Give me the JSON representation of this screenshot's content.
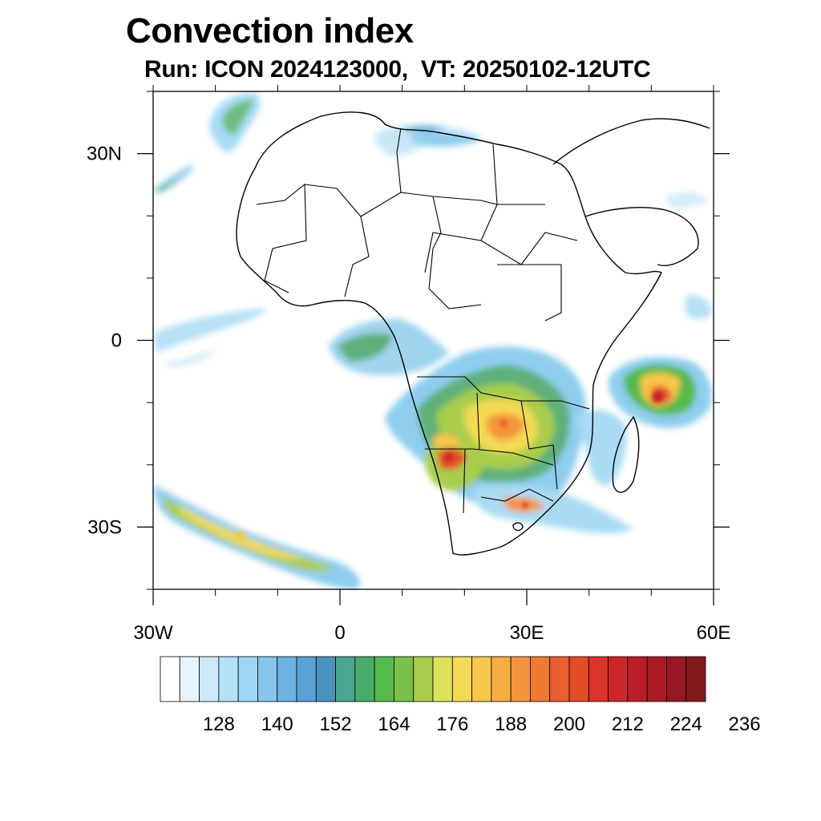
{
  "title": "Convection index",
  "subtitle": "Run: ICON 2024123000,  VT: 20250102-12UTC",
  "map": {
    "region": "Africa",
    "extent": {
      "lon": [
        -30,
        60
      ],
      "lat": [
        -40,
        40
      ]
    },
    "lat_ticks": [
      {
        "value": 30,
        "label": "30N"
      },
      {
        "value": 0,
        "label": "0"
      },
      {
        "value": -30,
        "label": "30S"
      }
    ],
    "lon_ticks": [
      {
        "value": -30,
        "label": "30W"
      },
      {
        "value": 0,
        "label": "0"
      },
      {
        "value": 30,
        "label": "30E"
      },
      {
        "value": 60,
        "label": "60E"
      }
    ]
  },
  "colorbar": {
    "labels": [
      "128",
      "140",
      "152",
      "164",
      "176",
      "188",
      "200",
      "212",
      "224",
      "236"
    ],
    "colors": [
      "#ffffff",
      "#e8f4fc",
      "#cde9f8",
      "#b5e0f6",
      "#9dd7f3",
      "#85c6ec",
      "#6db3e4",
      "#5a9fd6",
      "#4b93be",
      "#4aa591",
      "#47ad6b",
      "#55ba4c",
      "#7cc04a",
      "#a8cd4c",
      "#dde25a",
      "#f3da55",
      "#f7c64b",
      "#f6ad43",
      "#f4943c",
      "#f07a34",
      "#ea5f2d",
      "#e34a28",
      "#da3327",
      "#cc2628",
      "#bb1e2a",
      "#aa1a25",
      "#961822",
      "#851a1e"
    ]
  },
  "colors": {
    "frame": "#000000",
    "coast": "#000000"
  }
}
